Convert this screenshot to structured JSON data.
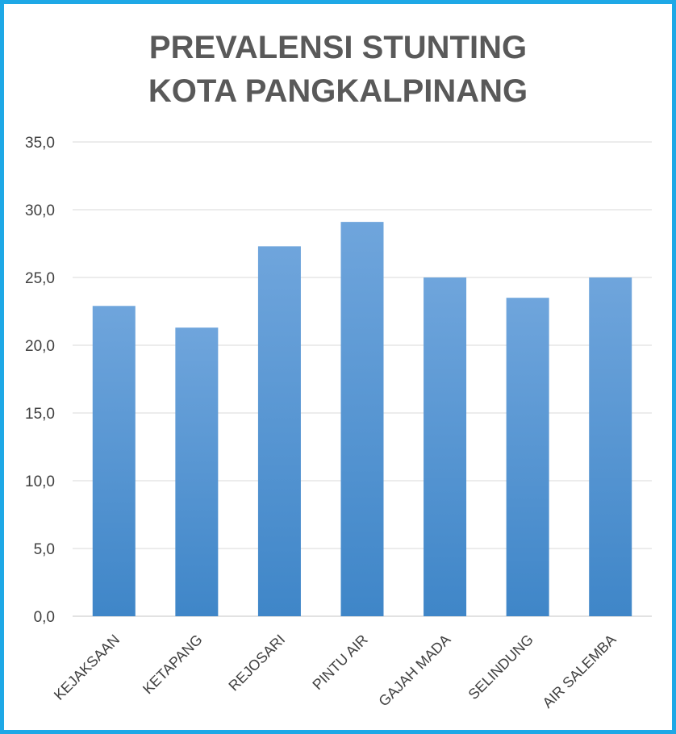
{
  "chart_data": {
    "type": "bar",
    "title_lines": [
      "PREVALENSI STUNTING",
      "KOTA PANGKALPINANG"
    ],
    "categories": [
      "KEJAKSAAN",
      "KETAPANG",
      "REJOSARI",
      "PINTU AIR",
      "GAJAH MADA",
      "SELINDUNG",
      "AIR SALEMBA"
    ],
    "values": [
      22.9,
      21.3,
      27.3,
      29.1,
      25.0,
      23.5,
      25.0
    ],
    "ylim": [
      0,
      35
    ],
    "yticks": [
      "0,0",
      "5,0",
      "10,0",
      "15,0",
      "20,0",
      "25,0",
      "30,0",
      "35,0"
    ],
    "ytick_values": [
      0,
      5,
      10,
      15,
      20,
      25,
      30,
      35
    ],
    "grid": true,
    "legend": "none",
    "colors": {
      "bar_top": "#6fa5dc",
      "bar_bottom": "#3f86c8",
      "grid": "#d9d9d9",
      "title": "#595959",
      "frame": "#1ea8e6"
    }
  }
}
